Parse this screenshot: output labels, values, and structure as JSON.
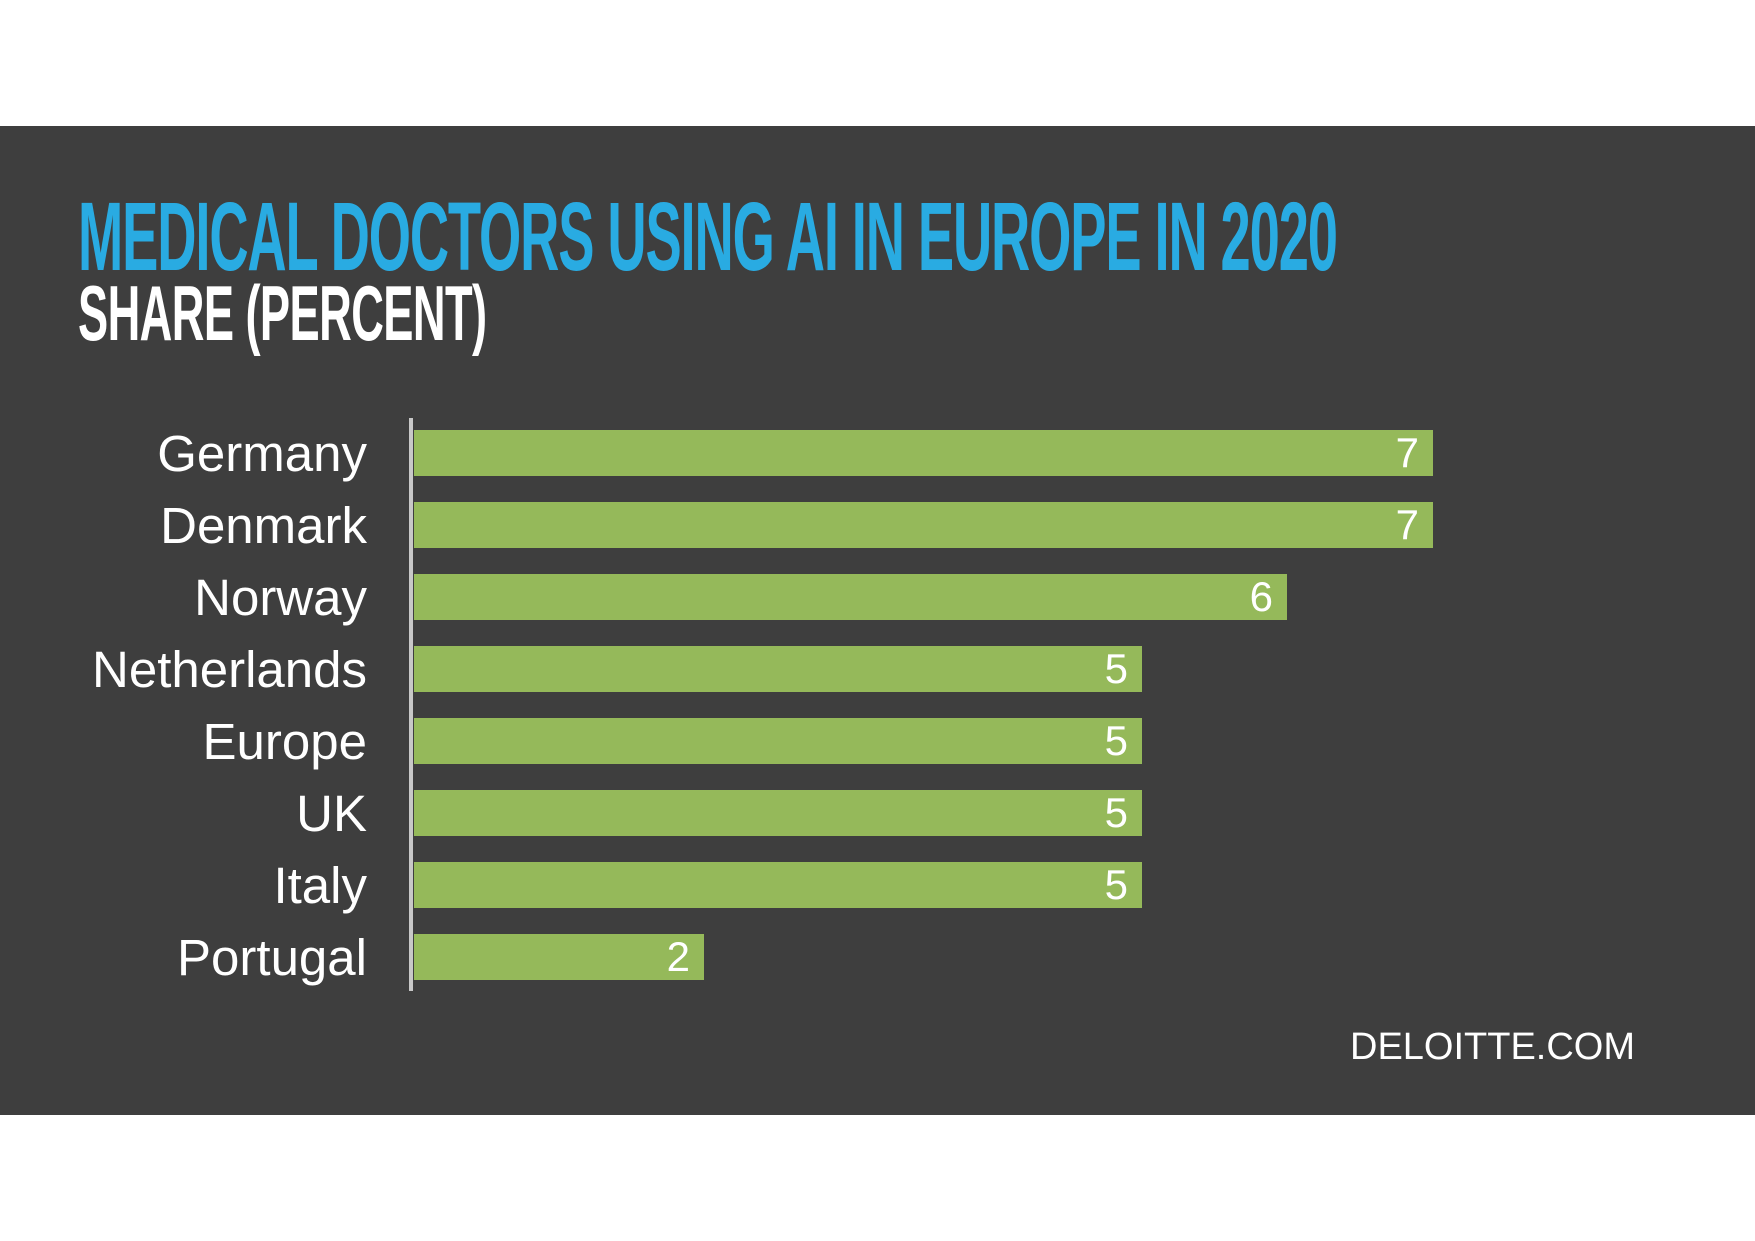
{
  "header": {
    "title": "MEDICAL DOCTORS USING AI IN EUROPE IN 2020",
    "subtitle": "SHARE (PERCENT)",
    "title_color": "#29abe2",
    "subtitle_color": "#ffffff"
  },
  "footer": {
    "source": "DELOITTE.COM"
  },
  "colors": {
    "panel_background": "#3e3e3e",
    "page_background": "#ffffff",
    "bar_green": "#95b95a",
    "axis_gray": "#c8c8c8",
    "label_white": "#ffffff"
  },
  "chart_data": {
    "type": "bar",
    "orientation": "horizontal",
    "title": "MEDICAL DOCTORS USING AI IN EUROPE IN 2020",
    "subtitle": "SHARE (PERCENT)",
    "categories": [
      "Germany",
      "Denmark",
      "Norway",
      "Netherlands",
      "Europe",
      "UK",
      "Italy",
      "Portugal"
    ],
    "values": [
      7,
      7,
      6,
      5,
      5,
      5,
      5,
      2
    ],
    "xlabel": "",
    "ylabel": "",
    "xlim": [
      0,
      7
    ],
    "grid": false,
    "legend": false,
    "value_labels_position": "inside-end",
    "bar_color": "#95b95a",
    "value_label_color": "#ffffff",
    "source": "DELOITTE.COM"
  }
}
